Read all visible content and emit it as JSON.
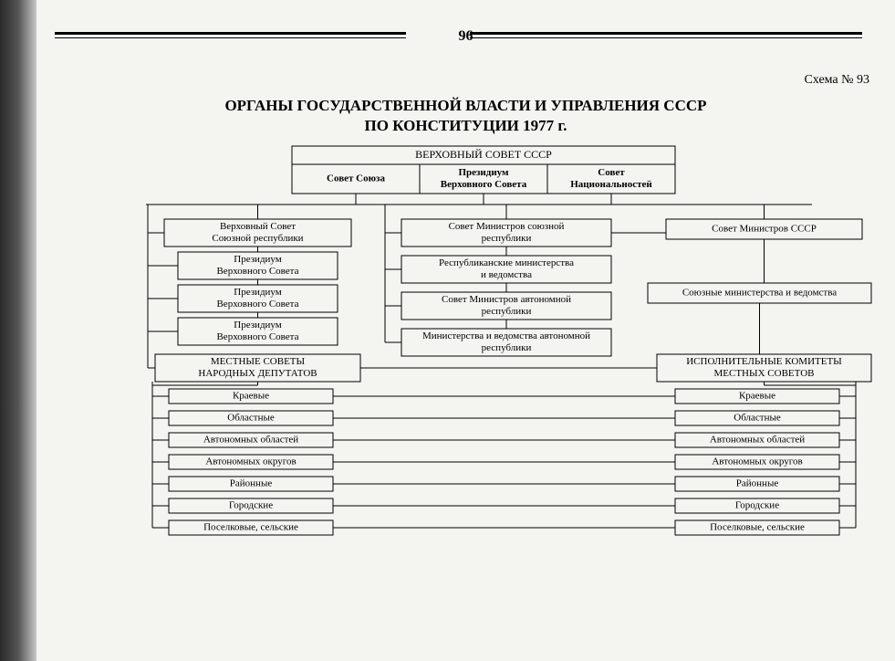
{
  "page_number": "96",
  "scheme_label": "Схема № 93",
  "title_line1": "ОРГАНЫ ГОСУДАРСТВЕННОЙ ВЛАСТИ И УПРАВЛЕНИЯ СССР",
  "title_line2": "ПО КОНСТИТУЦИИ 1977 г.",
  "bg_color": "#f4f4f1",
  "stroke": "#000",
  "top_header": "ВЕРХОВНЫЙ СОВЕТ СССР",
  "top_cells": [
    "Совет Союза",
    "Президиум\nВерховного Совета",
    "Совет\nНациональностей"
  ],
  "left_col": [
    "Верховный Совет\nСоюзной республики",
    "Президиум\nВерховного Совета",
    "Президиум\nВерховного Совета",
    "Президиум\nВерховного Совета"
  ],
  "left_header": "МЕСТНЫЕ СОВЕТЫ\nНАРОДНЫХ ДЕПУТАТОВ",
  "left_levels": [
    "Краевые",
    "Областные",
    "Автономных областей",
    "Автономных округов",
    "Районные",
    "Городские",
    "Поселковые, сельские"
  ],
  "mid_col": [
    "Совет Министров союзной\nреспублики",
    "Республиканские министерства\nи ведомства",
    "Совет Министров автономной\nреспублики",
    "Министерства и ведомства автономной\nреспублики"
  ],
  "right_col": [
    "Совет Министров СССР",
    "Союзные министерства и ведомства"
  ],
  "right_header": "ИСПОЛНИТЕЛЬНЫЕ КОМИТЕТЫ\nМЕСТНЫХ СОВЕТОВ",
  "right_levels": [
    "Краевые",
    "Областные",
    "Автономных областей",
    "Автономных округов",
    "Районные",
    "Городские",
    "Поселковые, сельские"
  ],
  "fontsize_box": 11,
  "fontsize_header": 12
}
